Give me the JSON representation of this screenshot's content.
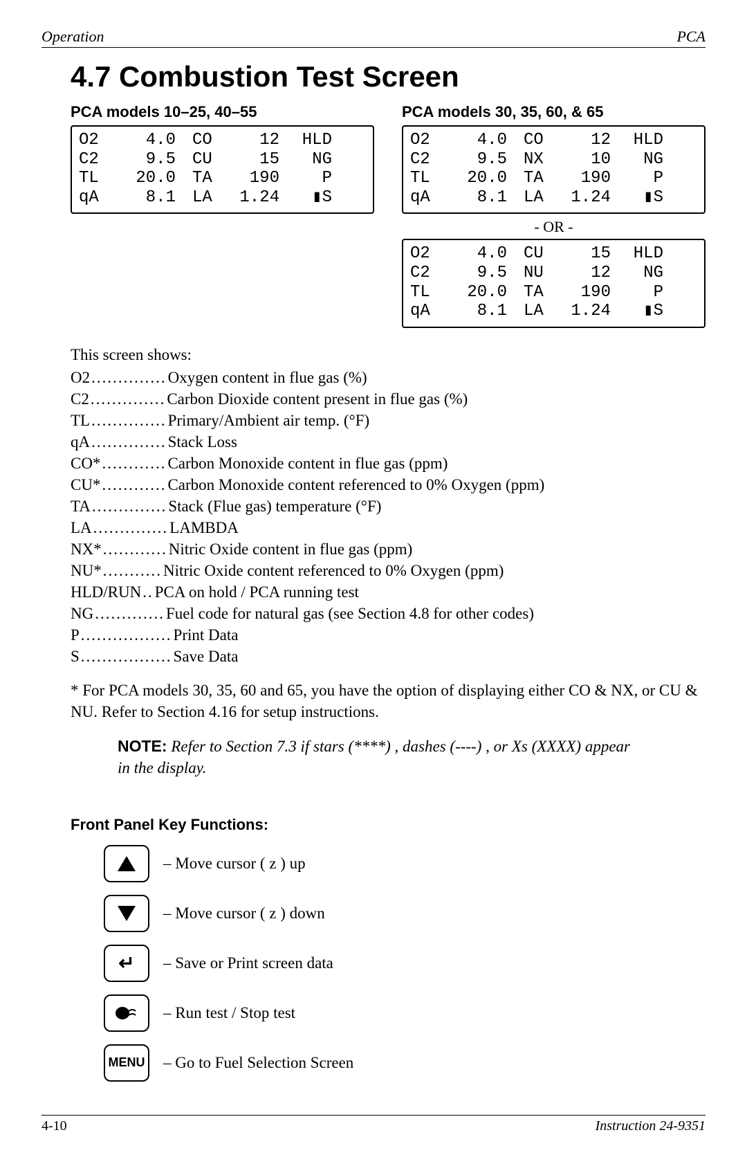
{
  "header": {
    "left": "Operation",
    "right": "PCA"
  },
  "title": "4.7  Combustion Test Screen",
  "left_panel": {
    "subhead": "PCA models 10–25, 40–55",
    "lcd": {
      "rows": [
        {
          "a": "O2",
          "av": "4.0",
          "b": "CO",
          "bv": "12",
          "st": "HLD"
        },
        {
          "a": "C2",
          "av": "9.5",
          "b": "CU",
          "bv": "15",
          "st": "NG"
        },
        {
          "a": "TL",
          "av": "20.0",
          "b": "TA",
          "bv": "190",
          "st": "P"
        },
        {
          "a": "qA",
          "av": "8.1",
          "b": "LA",
          "bv": "1.24",
          "st": "▮S"
        }
      ]
    }
  },
  "right_panel": {
    "subhead": "PCA models 30, 35, 60, & 65",
    "lcd1": {
      "rows": [
        {
          "a": "O2",
          "av": "4.0",
          "b": "CO",
          "bv": "12",
          "st": "HLD"
        },
        {
          "a": "C2",
          "av": "9.5",
          "b": "NX",
          "bv": "10",
          "st": "NG"
        },
        {
          "a": "TL",
          "av": "20.0",
          "b": "TA",
          "bv": "190",
          "st": "P"
        },
        {
          "a": "qA",
          "av": "8.1",
          "b": "LA",
          "bv": "1.24",
          "st": "▮S"
        }
      ]
    },
    "or_label": "- OR -",
    "lcd2": {
      "rows": [
        {
          "a": "O2",
          "av": "4.0",
          "b": "CU",
          "bv": "15",
          "st": "HLD"
        },
        {
          "a": "C2",
          "av": "9.5",
          "b": "NU",
          "bv": "12",
          "st": "NG"
        },
        {
          "a": "TL",
          "av": "20.0",
          "b": "TA",
          "bv": "190",
          "st": "P"
        },
        {
          "a": "qA",
          "av": "8.1",
          "b": "LA",
          "bv": "1.24",
          "st": "▮S"
        }
      ]
    }
  },
  "intro": "This screen shows:",
  "defs": [
    {
      "term": "O2",
      "dots": "..............",
      "desc": "Oxygen content in flue gas (%)"
    },
    {
      "term": "C2",
      "dots": "..............",
      "desc": "Carbon Dioxide content present in flue gas (%)"
    },
    {
      "term": "TL",
      "dots": "..............",
      "desc": "Primary/Ambient air temp. (°F)"
    },
    {
      "term": "qA",
      "dots": "..............",
      "desc": "Stack Loss"
    },
    {
      "term": "CO*",
      "dots": "............",
      "desc": "Carbon Monoxide content in flue gas (ppm)"
    },
    {
      "term": "CU*",
      "dots": "............",
      "desc": "Carbon Monoxide content referenced to 0% Oxygen (ppm)"
    },
    {
      "term": "TA",
      "dots": "..............",
      "desc": "Stack (Flue gas) temperature (°F)"
    },
    {
      "term": "LA",
      "dots": "..............",
      "desc": "LAMBDA"
    },
    {
      "term": "NX*",
      "dots": "............",
      "desc": "Nitric Oxide content in flue gas (ppm)"
    },
    {
      "term": "NU*",
      "dots": "...........",
      "desc": "Nitric Oxide content referenced to 0% Oxygen (ppm)"
    },
    {
      "term": "HLD/RUN",
      "dots": "..",
      "desc": "PCA on hold / PCA running test"
    },
    {
      "term": "NG",
      "dots": ".............",
      "desc": "Fuel code for natural gas (see Section 4.8 for other codes)"
    },
    {
      "term": "P",
      "dots": ".................",
      "desc": "Print Data"
    },
    {
      "term": "S",
      "dots": ".................",
      "desc": "Save Data"
    }
  ],
  "footnote": "*  For PCA models 30, 35, 60 and 65, you have the option of displaying either CO & NX, or CU & NU.  Refer to Section 4.16 for setup instructions.",
  "note_label": "NOTE:",
  "note_body": " Refer to Section 7.3  if stars (****) , dashes (----) , or Xs (XXXX) appear in the display.",
  "fp_head": "Front Panel Key Functions:",
  "keys": [
    {
      "icon": "up",
      "desc": "–  Move cursor ( z ) up"
    },
    {
      "icon": "down",
      "desc": "–  Move cursor ( z ) down"
    },
    {
      "icon": "enter",
      "desc": "–  Save or Print screen data"
    },
    {
      "icon": "run",
      "desc": "–  Run test / Stop test"
    },
    {
      "icon": "menu",
      "label": "MENU",
      "desc": "–  Go to Fuel Selection Screen"
    }
  ],
  "footer": {
    "left": "4-10",
    "right": "Instruction 24-9351"
  }
}
